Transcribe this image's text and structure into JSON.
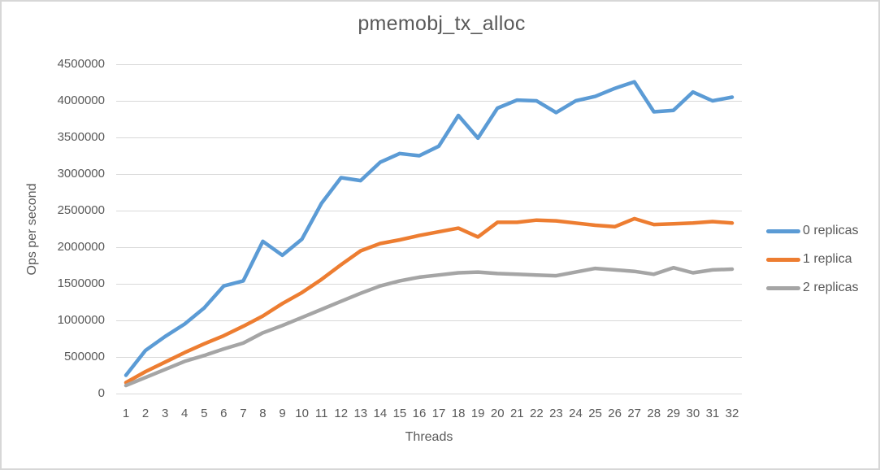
{
  "chart_data": {
    "type": "line",
    "title": "pmemobj_tx_alloc",
    "xlabel": "Threads",
    "ylabel": "Ops per second",
    "x": [
      1,
      2,
      3,
      4,
      5,
      6,
      7,
      8,
      9,
      10,
      11,
      12,
      13,
      14,
      15,
      16,
      17,
      18,
      19,
      20,
      21,
      22,
      23,
      24,
      25,
      26,
      27,
      28,
      29,
      30,
      31,
      32
    ],
    "series": [
      {
        "name": "0 replicas",
        "color": "#5B9BD5",
        "values": [
          250000,
          590000,
          780000,
          950000,
          1170000,
          1470000,
          1540000,
          2080000,
          1890000,
          2110000,
          2600000,
          2950000,
          2910000,
          3160000,
          3280000,
          3250000,
          3380000,
          3800000,
          3490000,
          3900000,
          4010000,
          4000000,
          3840000,
          4000000,
          4060000,
          4170000,
          4260000,
          3850000,
          3870000,
          4120000,
          4000000,
          4050000
        ]
      },
      {
        "name": "1 replica",
        "color": "#ED7D31",
        "values": [
          150000,
          300000,
          430000,
          560000,
          680000,
          790000,
          920000,
          1060000,
          1230000,
          1380000,
          1560000,
          1760000,
          1950000,
          2050000,
          2100000,
          2160000,
          2210000,
          2260000,
          2140000,
          2340000,
          2340000,
          2370000,
          2360000,
          2330000,
          2300000,
          2280000,
          2390000,
          2310000,
          2320000,
          2330000,
          2350000,
          2330000
        ]
      },
      {
        "name": "2 replicas",
        "color": "#A5A5A5",
        "values": [
          110000,
          220000,
          330000,
          440000,
          520000,
          610000,
          690000,
          830000,
          930000,
          1040000,
          1150000,
          1260000,
          1370000,
          1470000,
          1540000,
          1590000,
          1620000,
          1650000,
          1660000,
          1640000,
          1630000,
          1620000,
          1610000,
          1660000,
          1710000,
          1690000,
          1670000,
          1630000,
          1720000,
          1650000,
          1690000,
          1700000
        ]
      }
    ],
    "ylim": [
      0,
      4500000
    ],
    "yticks": [
      0,
      500000,
      1000000,
      1500000,
      2000000,
      2500000,
      3000000,
      3500000,
      4000000,
      4500000
    ],
    "grid": "horizontal",
    "legend_position": "right"
  },
  "styles": {
    "text_color": "#595959",
    "gridline_color": "#D9D9D9",
    "border_color": "#D7D7D7",
    "background_color": "#FFFFFF",
    "series_colors": [
      "#5B9BD5",
      "#ED7D31",
      "#A5A5A5"
    ]
  }
}
